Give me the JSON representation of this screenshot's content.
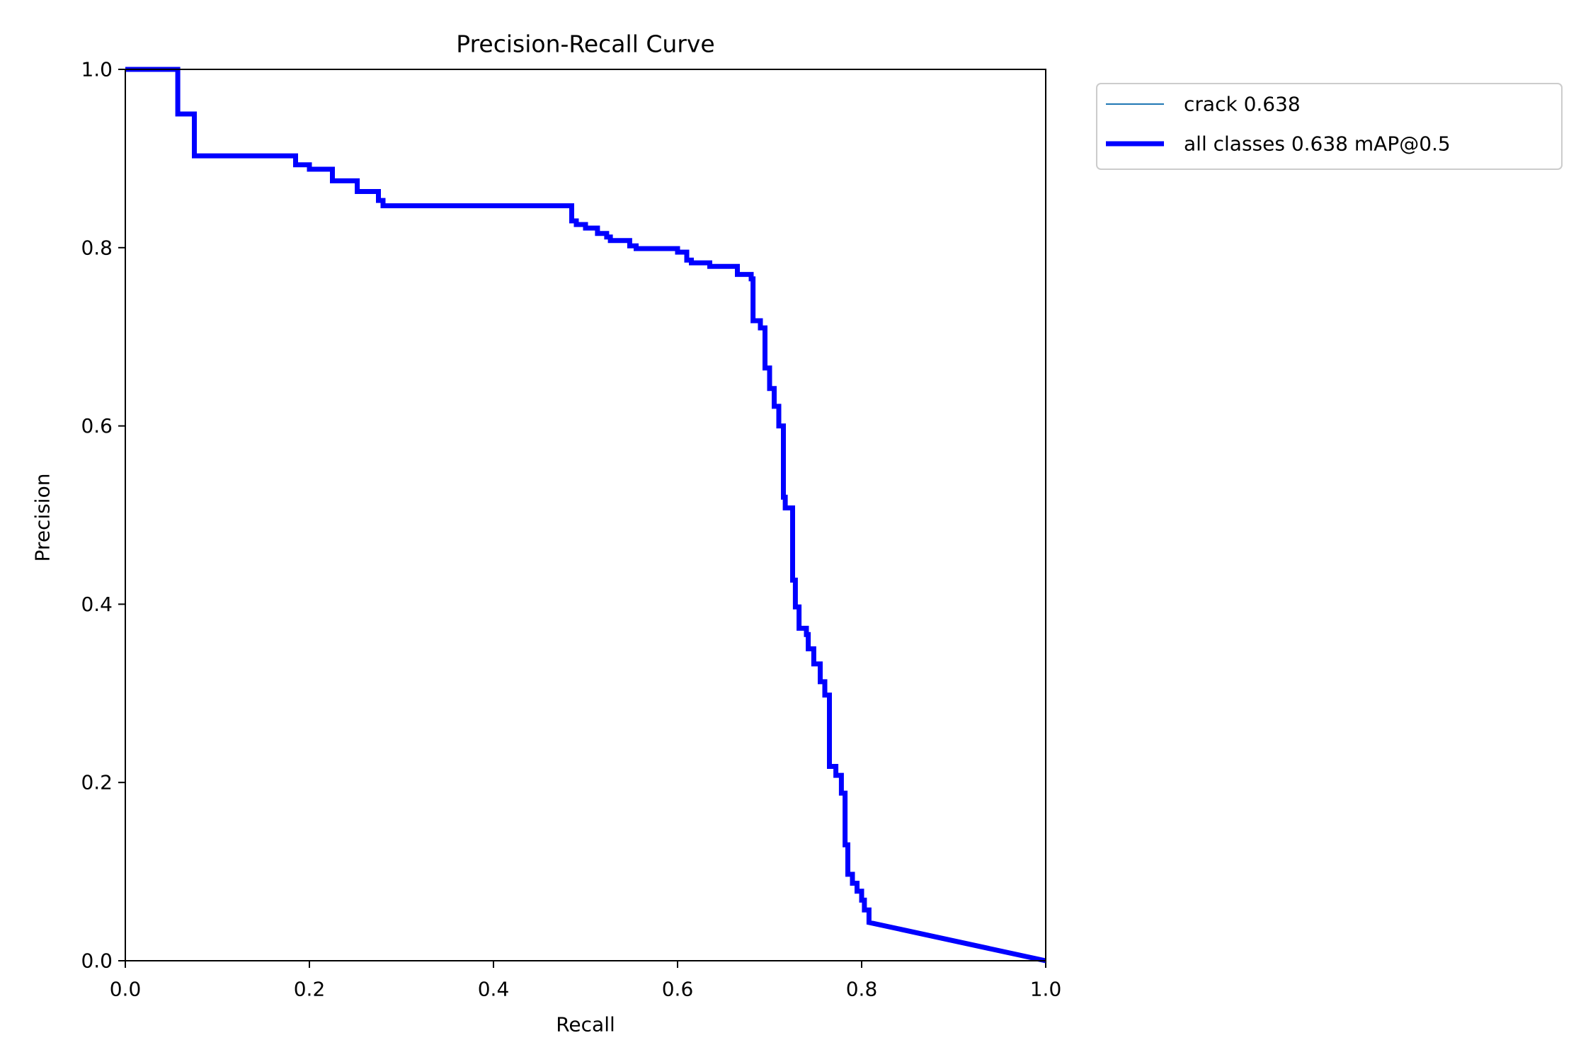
{
  "chart_data": {
    "type": "line",
    "title": "Precision-Recall Curve",
    "xlabel": "Recall",
    "ylabel": "Precision",
    "xlim": [
      0,
      1
    ],
    "ylim": [
      0,
      1
    ],
    "xticks": [
      "0.0",
      "0.2",
      "0.4",
      "0.6",
      "0.8",
      "1.0"
    ],
    "yticks": [
      "0.0",
      "0.2",
      "0.4",
      "0.6",
      "0.8",
      "1.0"
    ],
    "grid": false,
    "legend_position": "outside-top-right",
    "series": [
      {
        "name": "crack 0.638",
        "color": "#1f77b4",
        "x": [
          0.0,
          0.057,
          0.057,
          0.075,
          0.075,
          0.185,
          0.185,
          0.2,
          0.2,
          0.225,
          0.225,
          0.252,
          0.252,
          0.275,
          0.275,
          0.28,
          0.28,
          0.485,
          0.485,
          0.49,
          0.49,
          0.5,
          0.5,
          0.513,
          0.513,
          0.523,
          0.523,
          0.527,
          0.527,
          0.548,
          0.548,
          0.555,
          0.555,
          0.6,
          0.6,
          0.61,
          0.61,
          0.615,
          0.615,
          0.635,
          0.635,
          0.665,
          0.665,
          0.68,
          0.68,
          0.682,
          0.682,
          0.69,
          0.69,
          0.695,
          0.695,
          0.7,
          0.7,
          0.705,
          0.705,
          0.71,
          0.71,
          0.715,
          0.715,
          0.717,
          0.717,
          0.725,
          0.725,
          0.728,
          0.728,
          0.732,
          0.732,
          0.74,
          0.74,
          0.742,
          0.742,
          0.748,
          0.748,
          0.755,
          0.755,
          0.76,
          0.76,
          0.765,
          0.765,
          0.772,
          0.772,
          0.778,
          0.778,
          0.782,
          0.782,
          0.785,
          0.785,
          0.79,
          0.79,
          0.795,
          0.795,
          0.8,
          0.8,
          0.803,
          0.803,
          0.808,
          0.808,
          1.0
        ],
        "y": [
          1.0,
          1.0,
          0.95,
          0.95,
          0.903,
          0.903,
          0.893,
          0.893,
          0.888,
          0.888,
          0.875,
          0.875,
          0.863,
          0.863,
          0.853,
          0.853,
          0.847,
          0.847,
          0.83,
          0.83,
          0.826,
          0.826,
          0.822,
          0.822,
          0.816,
          0.816,
          0.812,
          0.812,
          0.808,
          0.808,
          0.802,
          0.802,
          0.799,
          0.799,
          0.795,
          0.795,
          0.786,
          0.786,
          0.783,
          0.783,
          0.779,
          0.779,
          0.77,
          0.77,
          0.765,
          0.765,
          0.718,
          0.718,
          0.71,
          0.71,
          0.665,
          0.665,
          0.642,
          0.642,
          0.622,
          0.622,
          0.6,
          0.6,
          0.52,
          0.52,
          0.508,
          0.508,
          0.427,
          0.427,
          0.397,
          0.397,
          0.373,
          0.373,
          0.366,
          0.366,
          0.35,
          0.35,
          0.333,
          0.333,
          0.313,
          0.313,
          0.298,
          0.298,
          0.218,
          0.218,
          0.208,
          0.208,
          0.188,
          0.188,
          0.13,
          0.13,
          0.097,
          0.097,
          0.087,
          0.087,
          0.078,
          0.078,
          0.068,
          0.068,
          0.057,
          0.057,
          0.043,
          0.0
        ],
        "line_width": "thin"
      },
      {
        "name": "all classes 0.638 mAP@0.5",
        "color": "#0000ff",
        "same_as": "crack 0.638",
        "line_width": "thick"
      }
    ]
  }
}
